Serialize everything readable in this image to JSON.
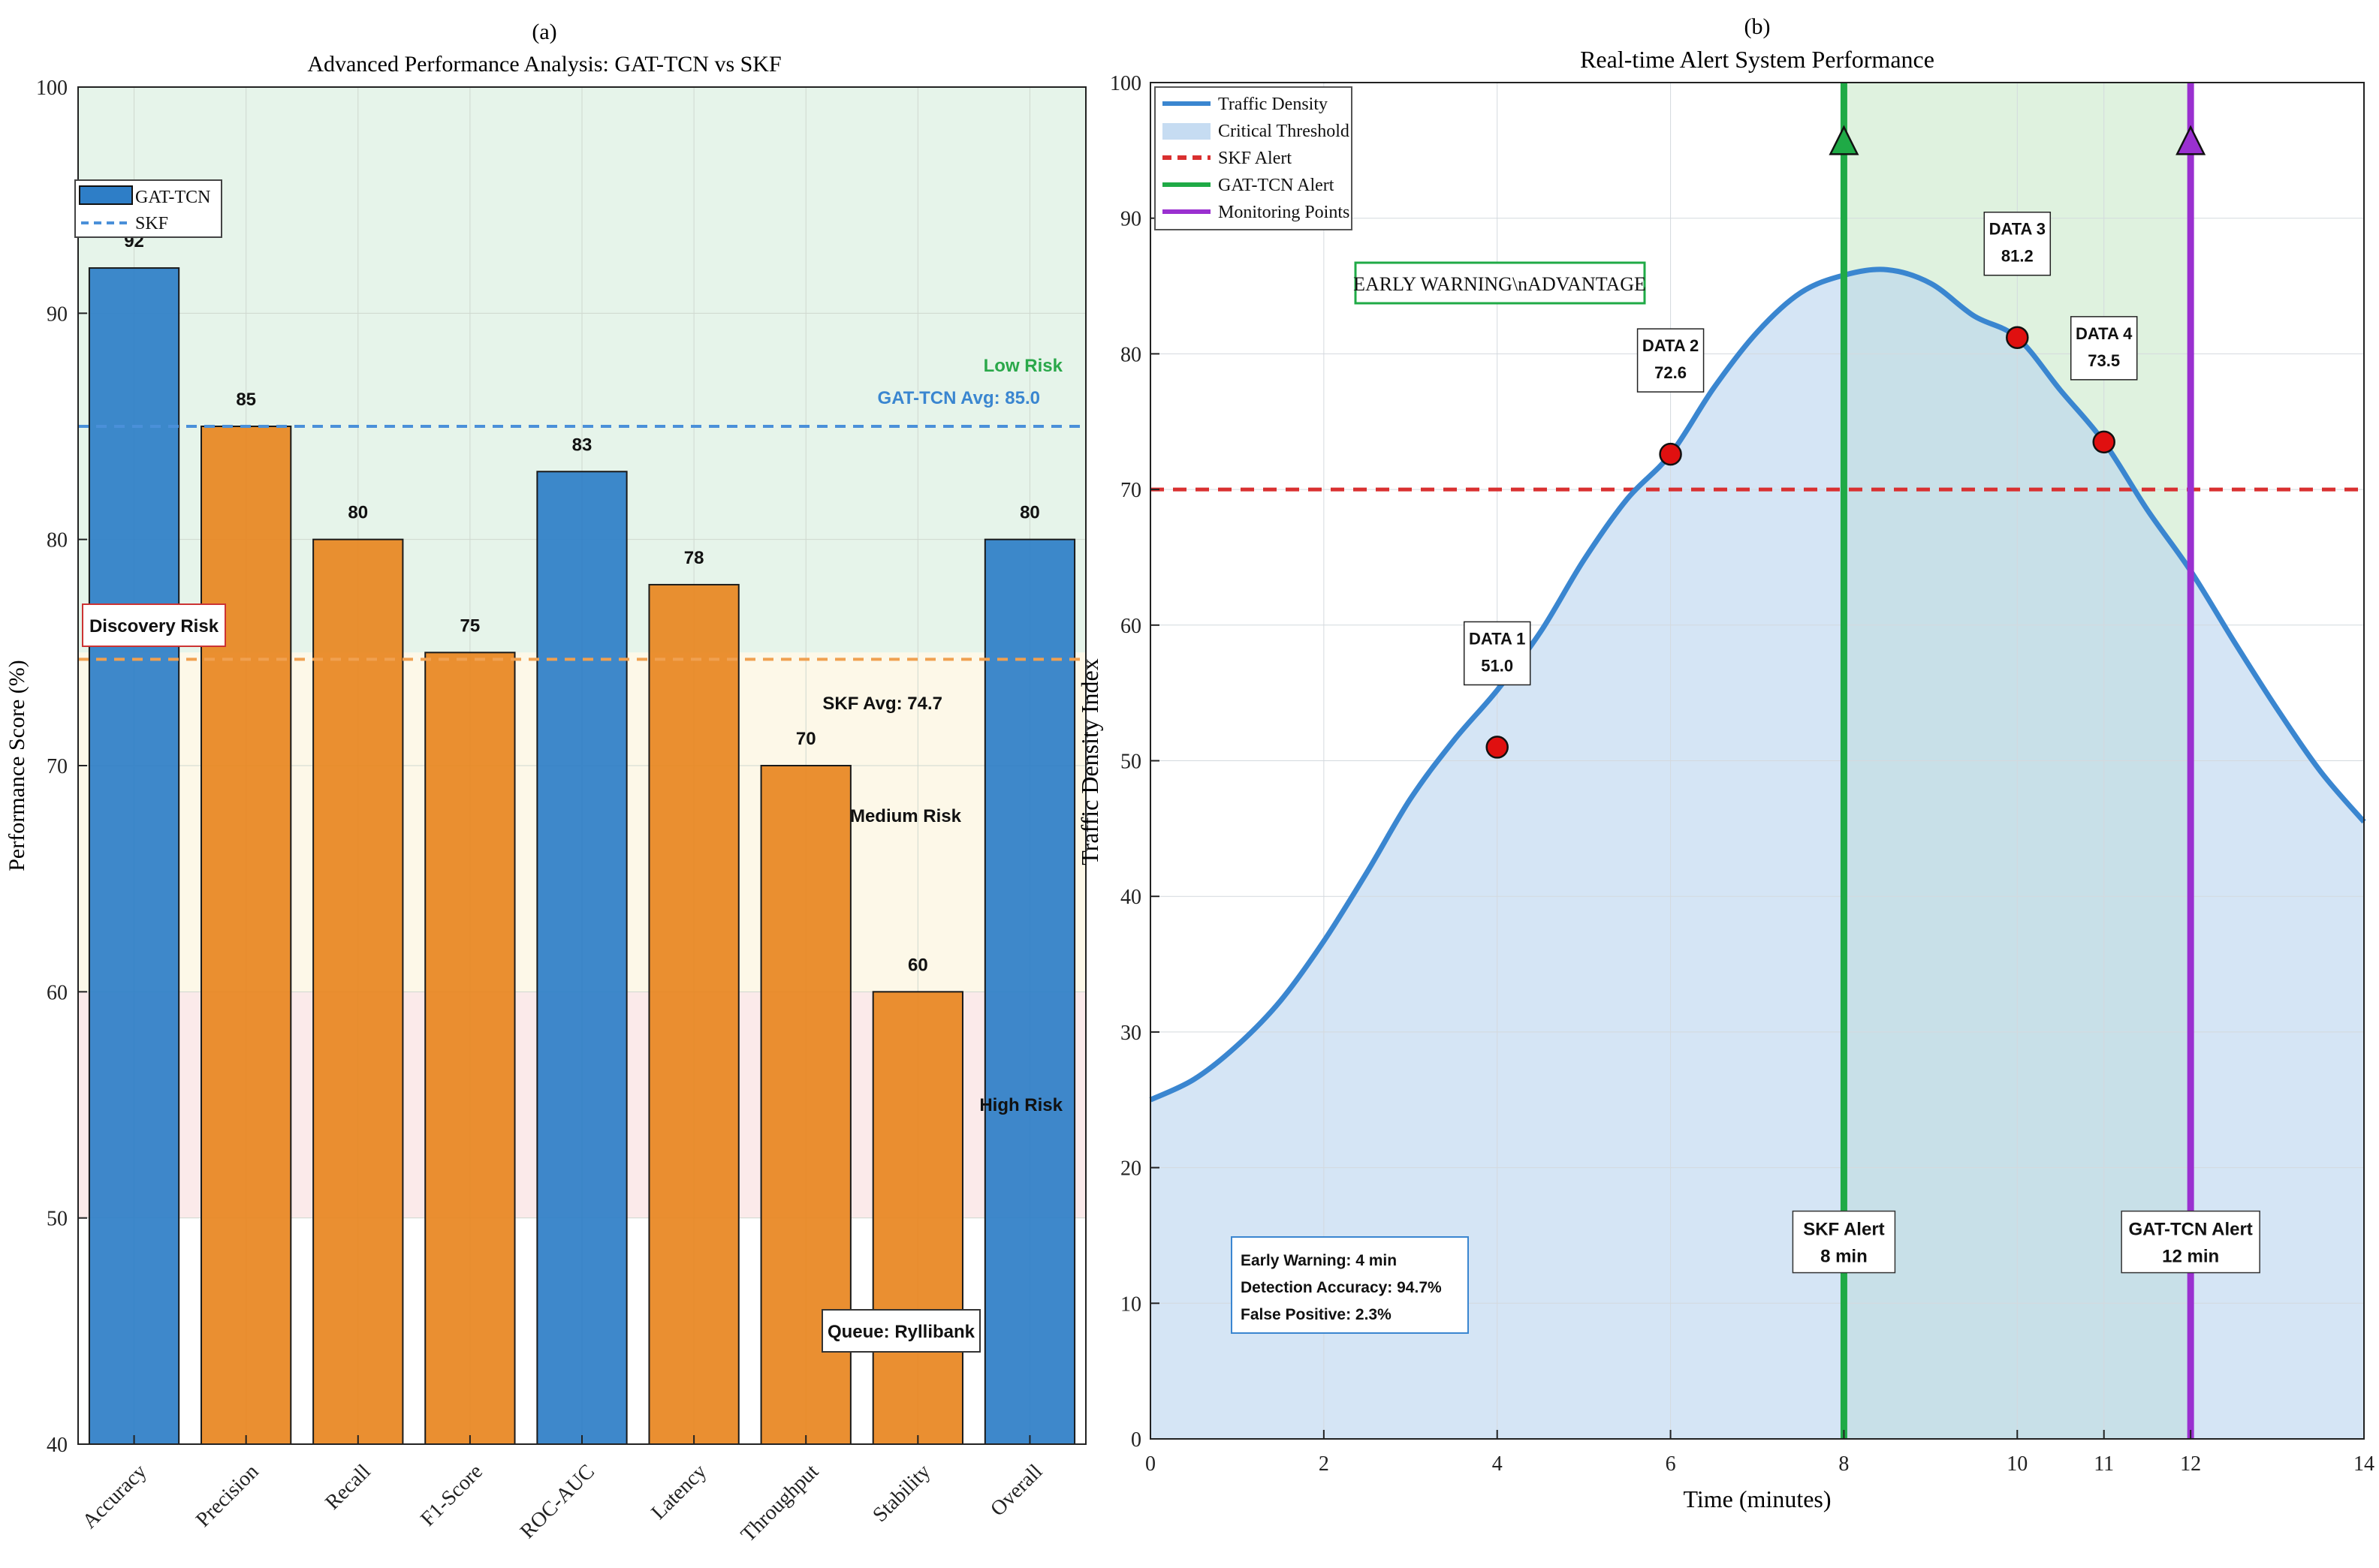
{
  "chart_data": [
    {
      "panel": "(a)",
      "type": "bar",
      "title": "Advanced Performance Analysis: GAT-TCN vs SKF",
      "xlabel": "",
      "ylabel": "Performance Score (%)",
      "ylim": [
        40,
        100
      ],
      "yticks": [
        40,
        50,
        60,
        70,
        80,
        90,
        100
      ],
      "categories": [
        "Accuracy",
        "Precision",
        "Recall",
        "F1-Score",
        "ROC-AUC",
        "Latency",
        "Throughput",
        "Stability",
        "Overall"
      ],
      "values": [
        92,
        85,
        80,
        75,
        83,
        78,
        70,
        60,
        80
      ],
      "value_labels": [
        "92",
        "85",
        "80",
        "75",
        "83",
        "78",
        "70",
        "60",
        "80"
      ],
      "model": [
        "GAT-TCN",
        "SKF",
        "SKF",
        "SKF",
        "GAT-TCN",
        "SKF",
        "SKF",
        "SKF",
        "GAT-TCN"
      ],
      "colors": {
        "GAT-TCN": "#2e7ec7",
        "SKF": "#e8861f"
      },
      "zones": [
        {
          "name": "Low Risk",
          "range": [
            75,
            100
          ],
          "color": "#e6f4ea"
        },
        {
          "name": "Medium Risk",
          "range": [
            60,
            75
          ],
          "color": "#fdf8e8"
        },
        {
          "name": "High Risk",
          "range": [
            50,
            60
          ],
          "color": "#fbeaea"
        }
      ],
      "reference_lines": [
        {
          "label": "GAT-TCN Avg: 85.0",
          "value": 85.0,
          "color": "#4a90d9"
        },
        {
          "label": "SKF Avg: 74.7",
          "value": 74.7,
          "color": "#f0a050"
        }
      ],
      "legend": [
        "GAT-TCN",
        "SKF"
      ],
      "legend_position": "top-left",
      "annotations": [
        "Low Risk",
        "Medium Risk",
        "High Risk",
        "Discovery Risk",
        "Queue: Ryllibank"
      ],
      "grid": true
    },
    {
      "panel": "(b)",
      "type": "line",
      "title": "Real-time Alert System Performance",
      "xlabel": "Time (minutes)",
      "ylabel": "Traffic Density Index",
      "xlim": [
        0,
        14
      ],
      "ylim": [
        0,
        100
      ],
      "xticks": [
        0,
        2,
        4,
        6,
        8,
        10,
        11,
        12,
        14
      ],
      "yticks": [
        0,
        10,
        20,
        30,
        40,
        50,
        60,
        70,
        80,
        90,
        100
      ],
      "series": [
        {
          "name": "Traffic Density",
          "color": "#3a86d0",
          "x": [
            0,
            0.5,
            1,
            1.5,
            2,
            2.5,
            3,
            3.5,
            4,
            4.5,
            5,
            5.5,
            6,
            6.5,
            7,
            7.5,
            8,
            8.5,
            9,
            9.5,
            10,
            10.5,
            11,
            11.5,
            12,
            12.5,
            13,
            13.5,
            14
          ],
          "y": [
            25,
            26.5,
            29,
            32.3,
            36.7,
            41.8,
            47.2,
            51.5,
            51,
            59.5,
            64.8,
            69.3,
            72.6,
            77.5,
            81.6,
            84.5,
            85.8,
            86.2,
            85.2,
            82.8,
            81.2,
            77.3,
            73.5,
            68.5,
            64,
            58.8,
            53.8,
            49.2,
            45.5
          ]
        }
      ],
      "critical_threshold_label": "Critical Threshold",
      "skf_alert_line": {
        "label": "SKF Alert",
        "value": 70,
        "color": "#d93030"
      },
      "alert_lines": [
        {
          "name": "GAT-TCN Alert",
          "x": 8,
          "color": "#1faa46",
          "annotation": "SKF Alert",
          "sub": "8 min"
        },
        {
          "name": "Monitoring Points",
          "x": 12,
          "color": "#9a30d0",
          "annotation": "GAT-TCN Alert",
          "sub": "12 min"
        }
      ],
      "shaded_window": {
        "x": [
          8,
          12
        ],
        "color": "#dff2df"
      },
      "data_points": [
        {
          "label": "DATA 1",
          "x": 4,
          "y": 51.0,
          "value": "51.0"
        },
        {
          "label": "DATA 2",
          "x": 6,
          "y": 72.6,
          "value": "72.6"
        },
        {
          "label": "DATA 3",
          "x": 10,
          "y": 81.2,
          "value": "81.2"
        },
        {
          "label": "DATA 4",
          "x": 11,
          "y": 73.5,
          "value": "73.5"
        }
      ],
      "legend": [
        "Traffic Density",
        "Critical Threshold",
        "SKF Alert",
        "GAT-TCN Alert",
        "Monitoring Points"
      ],
      "legend_position": "top-left",
      "early_warning_box": "EARLY WARNING\\nADVANTAGE",
      "stats_box": [
        "Early Warning: 4 min",
        "Detection Accuracy: 94.7%",
        "False Positive: 2.3%"
      ],
      "grid": true
    }
  ]
}
